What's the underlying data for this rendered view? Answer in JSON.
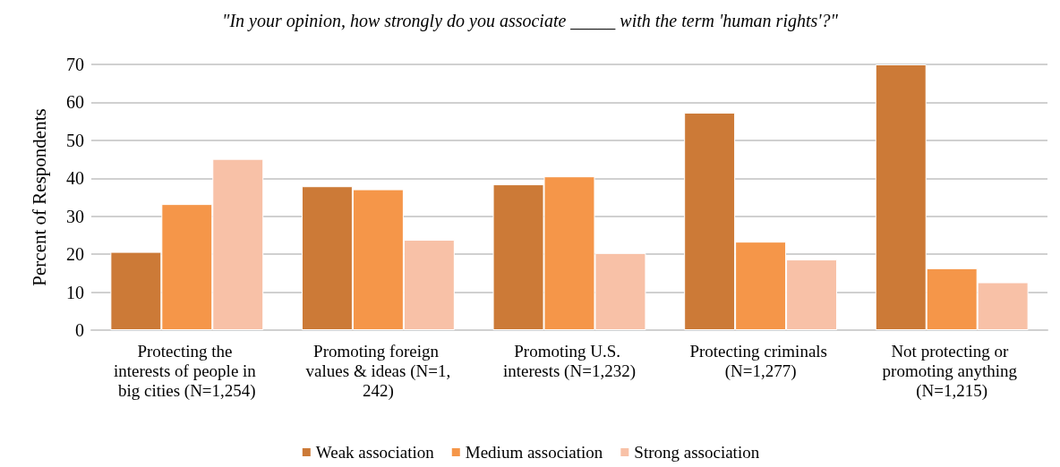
{
  "chart_data": {
    "type": "bar",
    "title": "\"In your opinion, how strongly do you associate _____ with the term 'human rights'?\"",
    "ylabel": "Percent of Respondents",
    "categories": [
      "Protecting the interests of people in big cities (N=1,254)",
      "Promoting foreign values & ideas (N=1,242)",
      "Promoting U.S. interests (N=1,232)",
      "Protecting criminals (N=1,277)",
      "Not protecting or promoting anything (N=1,215)"
    ],
    "series": [
      {
        "name": "Weak association",
        "color": "#cc7a37",
        "values": [
          20.6,
          37.9,
          38.4,
          57.3,
          70
        ]
      },
      {
        "name": "Medium association",
        "color": "#f59649",
        "values": [
          33.2,
          37.1,
          40.5,
          23.3,
          16.3
        ]
      },
      {
        "name": "Strong association",
        "color": "#f8c1a7",
        "values": [
          45.1,
          23.8,
          20.3,
          18.6,
          12.6
        ]
      }
    ],
    "ylim": [
      0,
      70
    ],
    "yticks": [
      0,
      10,
      20,
      30,
      40,
      50,
      60,
      70
    ],
    "grid": "y",
    "legend": "bottom"
  }
}
